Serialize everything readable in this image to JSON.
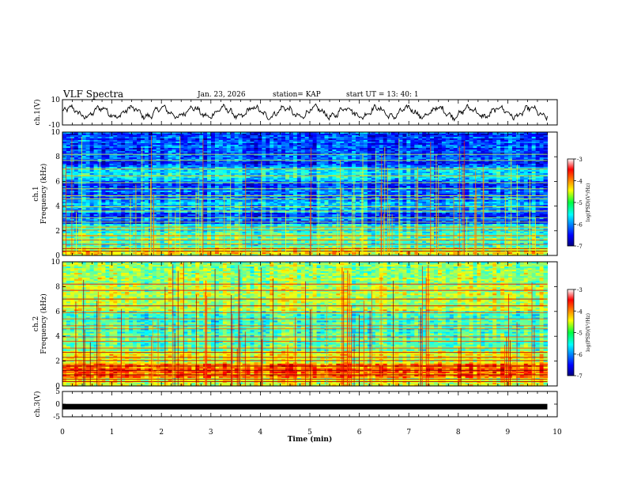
{
  "header": {
    "title": "VLF Spectra",
    "date": "Jan. 23, 2026",
    "station": "station= KAP",
    "start_ut": "start  UT =   13: 40: 1"
  },
  "chart_data": [
    {
      "type": "line",
      "panel": "ch1-waveform",
      "ylabel": "ch.1(V)",
      "ylim": [
        -10,
        10
      ],
      "yticks": [
        "10",
        "-10"
      ],
      "xlim": [
        0,
        10
      ],
      "series": [
        {
          "name": "ch.1",
          "description": "oscillating signal roughly between -6 and 6 V"
        }
      ]
    },
    {
      "type": "heatmap",
      "panel": "ch1-spectrogram",
      "ylabel": "ch.1\nFrequency (kHz)",
      "ylabel_line1": "ch.1",
      "ylabel_line2": "Frequency (kHz)",
      "ylim": [
        0,
        10
      ],
      "yticks": [
        "0",
        "2",
        "4",
        "6",
        "8",
        "10"
      ],
      "xlim": [
        0,
        10
      ],
      "colorbar": {
        "label": "log(PSD)(V²/Hz)",
        "range": [
          -7,
          -3
        ],
        "ticks": [
          "-3",
          "-4",
          "-5",
          "-6",
          "-7"
        ]
      }
    },
    {
      "type": "heatmap",
      "panel": "ch2-spectrogram",
      "ylabel_line1": "ch.2",
      "ylabel_line2": "Frequency (kHz)",
      "ylim": [
        0,
        10
      ],
      "yticks": [
        "0",
        "2",
        "4",
        "6",
        "8",
        "10"
      ],
      "xlim": [
        0,
        10
      ],
      "colorbar": {
        "label": "log(PSD)(V²/Hz)",
        "range": [
          -7,
          -3
        ],
        "ticks": [
          "-3",
          "-4",
          "-5",
          "-6",
          "-7"
        ]
      }
    },
    {
      "type": "line",
      "panel": "ch3-waveform",
      "ylabel": "ch.3(V)",
      "ylim": [
        -5,
        5
      ],
      "yticks": [
        "5",
        "0",
        "-5"
      ],
      "xlim": [
        0,
        10
      ],
      "xlabel": "Time  (min)",
      "xticks": [
        "0",
        "1",
        "2",
        "3",
        "4",
        "5",
        "6",
        "7",
        "8",
        "9",
        "10"
      ],
      "series": [
        {
          "name": "ch.3",
          "description": "flat thick band near -1 V"
        }
      ]
    }
  ],
  "colorbar_label": "log(PSD)(V²/Hz)",
  "xlabel": "Time  (min)"
}
